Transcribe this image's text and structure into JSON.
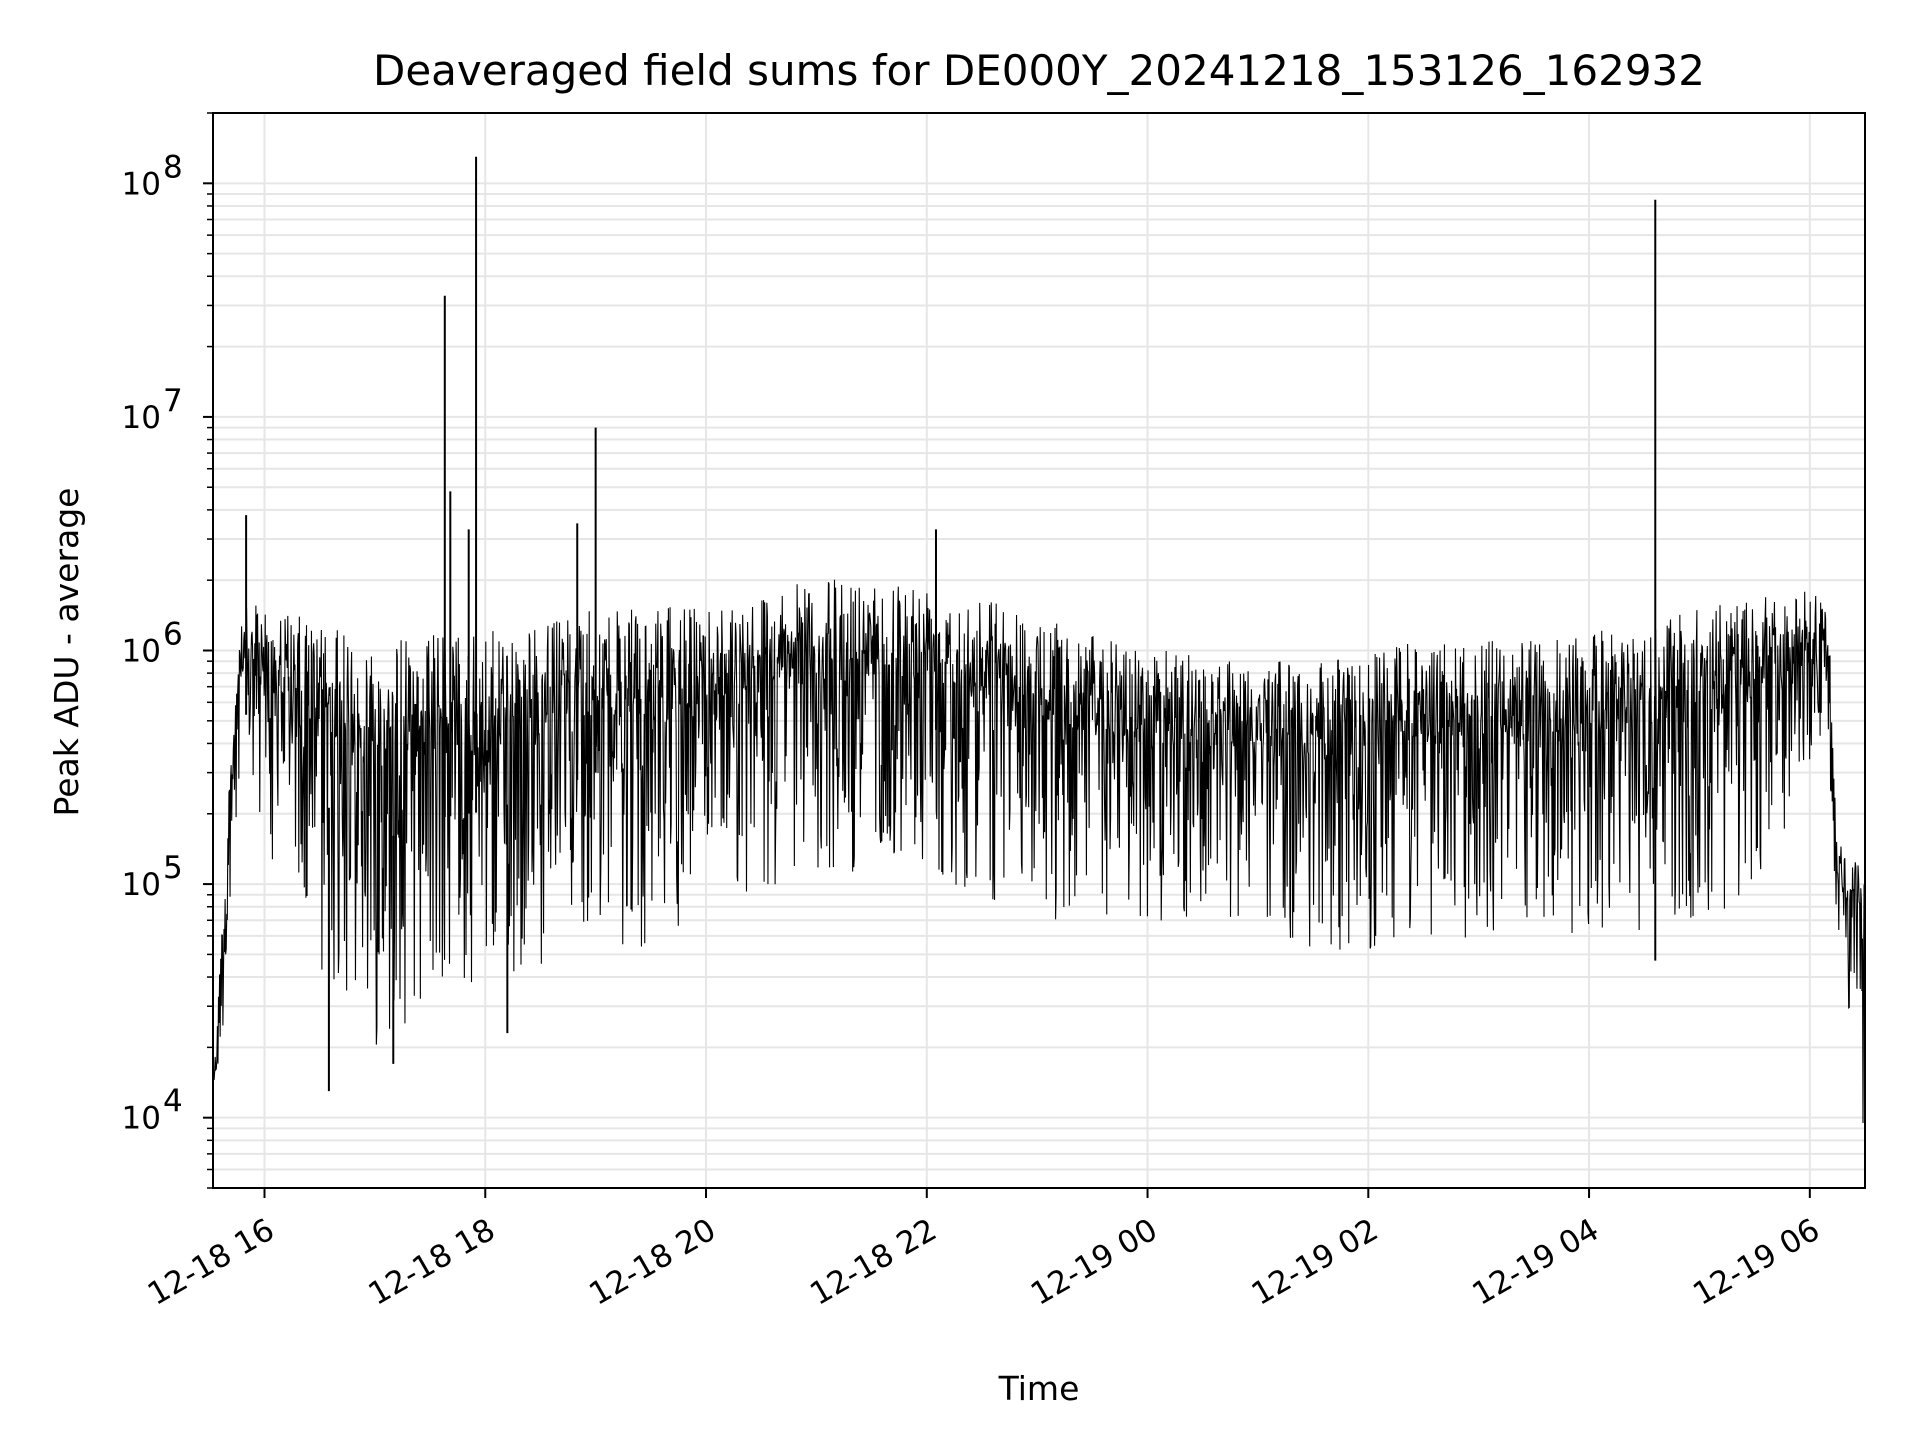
{
  "chart_data": {
    "type": "line",
    "title": "Deaveraged field sums for DE000Y_20241218_153126_162932",
    "xlabel": "Time",
    "ylabel": "Peak ADU - average",
    "yscale": "log",
    "ylim": [
      5000,
      200000000
    ],
    "xlim": [
      "2024-12-18 15:32",
      "2024-12-19 06:30"
    ],
    "x_ticks": [
      {
        "value": "2024-12-18 16:00",
        "label": "12-18 16"
      },
      {
        "value": "2024-12-18 18:00",
        "label": "12-18 18"
      },
      {
        "value": "2024-12-18 20:00",
        "label": "12-18 20"
      },
      {
        "value": "2024-12-18 22:00",
        "label": "12-18 22"
      },
      {
        "value": "2024-12-19 00:00",
        "label": "12-19 00"
      },
      {
        "value": "2024-12-19 02:00",
        "label": "12-19 02"
      },
      {
        "value": "2024-12-19 04:00",
        "label": "12-19 04"
      },
      {
        "value": "2024-12-19 06:00",
        "label": "12-19 06"
      }
    ],
    "y_ticks": [
      {
        "value": 10000,
        "base": "10",
        "exp": "4"
      },
      {
        "value": 100000,
        "base": "10",
        "exp": "5"
      },
      {
        "value": 1000000,
        "base": "10",
        "exp": "6"
      },
      {
        "value": 10000000,
        "base": "10",
        "exp": "7"
      },
      {
        "value": 100000000,
        "base": "10",
        "exp": "8"
      }
    ],
    "grid": true,
    "line_color": "#000000",
    "grid_color": "#e6e6e6",
    "series": [
      {
        "envelope": [
          {
            "t": "2024-12-18 15:32",
            "low": 8000,
            "high": 15000
          },
          {
            "t": "2024-12-18 15:40",
            "low": 30000,
            "high": 200000
          },
          {
            "t": "2024-12-18 15:46",
            "low": 200000,
            "high": 1500000
          },
          {
            "t": "2024-12-18 16:00",
            "low": 150000,
            "high": 1600000
          },
          {
            "t": "2024-12-18 16:30",
            "low": 40000,
            "high": 1300000
          },
          {
            "t": "2024-12-18 17:00",
            "low": 20000,
            "high": 1100000
          },
          {
            "t": "2024-12-18 17:30",
            "low": 30000,
            "high": 1200000
          },
          {
            "t": "2024-12-18 18:00",
            "low": 35000,
            "high": 1200000
          },
          {
            "t": "2024-12-18 18:30",
            "low": 45000,
            "high": 1300000
          },
          {
            "t": "2024-12-18 19:00",
            "low": 60000,
            "high": 1500000
          },
          {
            "t": "2024-12-18 19:30",
            "low": 50000,
            "high": 1500000
          },
          {
            "t": "2024-12-18 20:00",
            "low": 70000,
            "high": 1600000
          },
          {
            "t": "2024-12-18 20:30",
            "low": 90000,
            "high": 1800000
          },
          {
            "t": "2024-12-18 21:00",
            "low": 100000,
            "high": 2000000
          },
          {
            "t": "2024-12-18 21:30",
            "low": 120000,
            "high": 2100000
          },
          {
            "t": "2024-12-18 22:00",
            "low": 110000,
            "high": 2000000
          },
          {
            "t": "2024-12-18 22:30",
            "low": 90000,
            "high": 1800000
          },
          {
            "t": "2024-12-18 23:00",
            "low": 70000,
            "high": 1400000
          },
          {
            "t": "2024-12-18 23:30",
            "low": 60000,
            "high": 1200000
          },
          {
            "t": "2024-12-19 00:00",
            "low": 65000,
            "high": 1000000
          },
          {
            "t": "2024-12-19 00:30",
            "low": 70000,
            "high": 1000000
          },
          {
            "t": "2024-12-19 01:00",
            "low": 70000,
            "high": 900000
          },
          {
            "t": "2024-12-19 01:30",
            "low": 50000,
            "high": 900000
          },
          {
            "t": "2024-12-19 02:00",
            "low": 50000,
            "high": 1000000
          },
          {
            "t": "2024-12-19 02:30",
            "low": 55000,
            "high": 1100000
          },
          {
            "t": "2024-12-19 03:00",
            "low": 60000,
            "high": 1100000
          },
          {
            "t": "2024-12-19 03:30",
            "low": 60000,
            "high": 1100000
          },
          {
            "t": "2024-12-19 04:00",
            "low": 60000,
            "high": 1200000
          },
          {
            "t": "2024-12-19 04:30",
            "low": 60000,
            "high": 1300000
          },
          {
            "t": "2024-12-19 05:00",
            "low": 70000,
            "high": 1500000
          },
          {
            "t": "2024-12-19 05:30",
            "low": 80000,
            "high": 1700000
          },
          {
            "t": "2024-12-19 06:00",
            "low": 300000,
            "high": 1800000
          },
          {
            "t": "2024-12-19 06:10",
            "low": 400000,
            "high": 1600000
          },
          {
            "t": "2024-12-19 06:15",
            "low": 60000,
            "high": 150000
          },
          {
            "t": "2024-12-19 06:30",
            "low": 8000,
            "high": 120000
          }
        ],
        "spikes": [
          {
            "t": "2024-12-18 15:50",
            "value": 3800000
          },
          {
            "t": "2024-12-18 17:38",
            "value": 33000000
          },
          {
            "t": "2024-12-18 17:41",
            "value": 4800000
          },
          {
            "t": "2024-12-18 17:51",
            "value": 3300000
          },
          {
            "t": "2024-12-18 17:55",
            "value": 130000000
          },
          {
            "t": "2024-12-18 18:50",
            "value": 3500000
          },
          {
            "t": "2024-12-18 19:00",
            "value": 9000000
          },
          {
            "t": "2024-12-18 22:05",
            "value": 3300000
          },
          {
            "t": "2024-12-19 04:36",
            "value": 85000000
          }
        ],
        "dips": [
          {
            "t": "2024-12-18 16:35",
            "value": 13000
          },
          {
            "t": "2024-12-18 17:10",
            "value": 17000
          },
          {
            "t": "2024-12-18 18:12",
            "value": 23000
          },
          {
            "t": "2024-12-19 04:36",
            "value": 47000
          }
        ]
      }
    ]
  }
}
